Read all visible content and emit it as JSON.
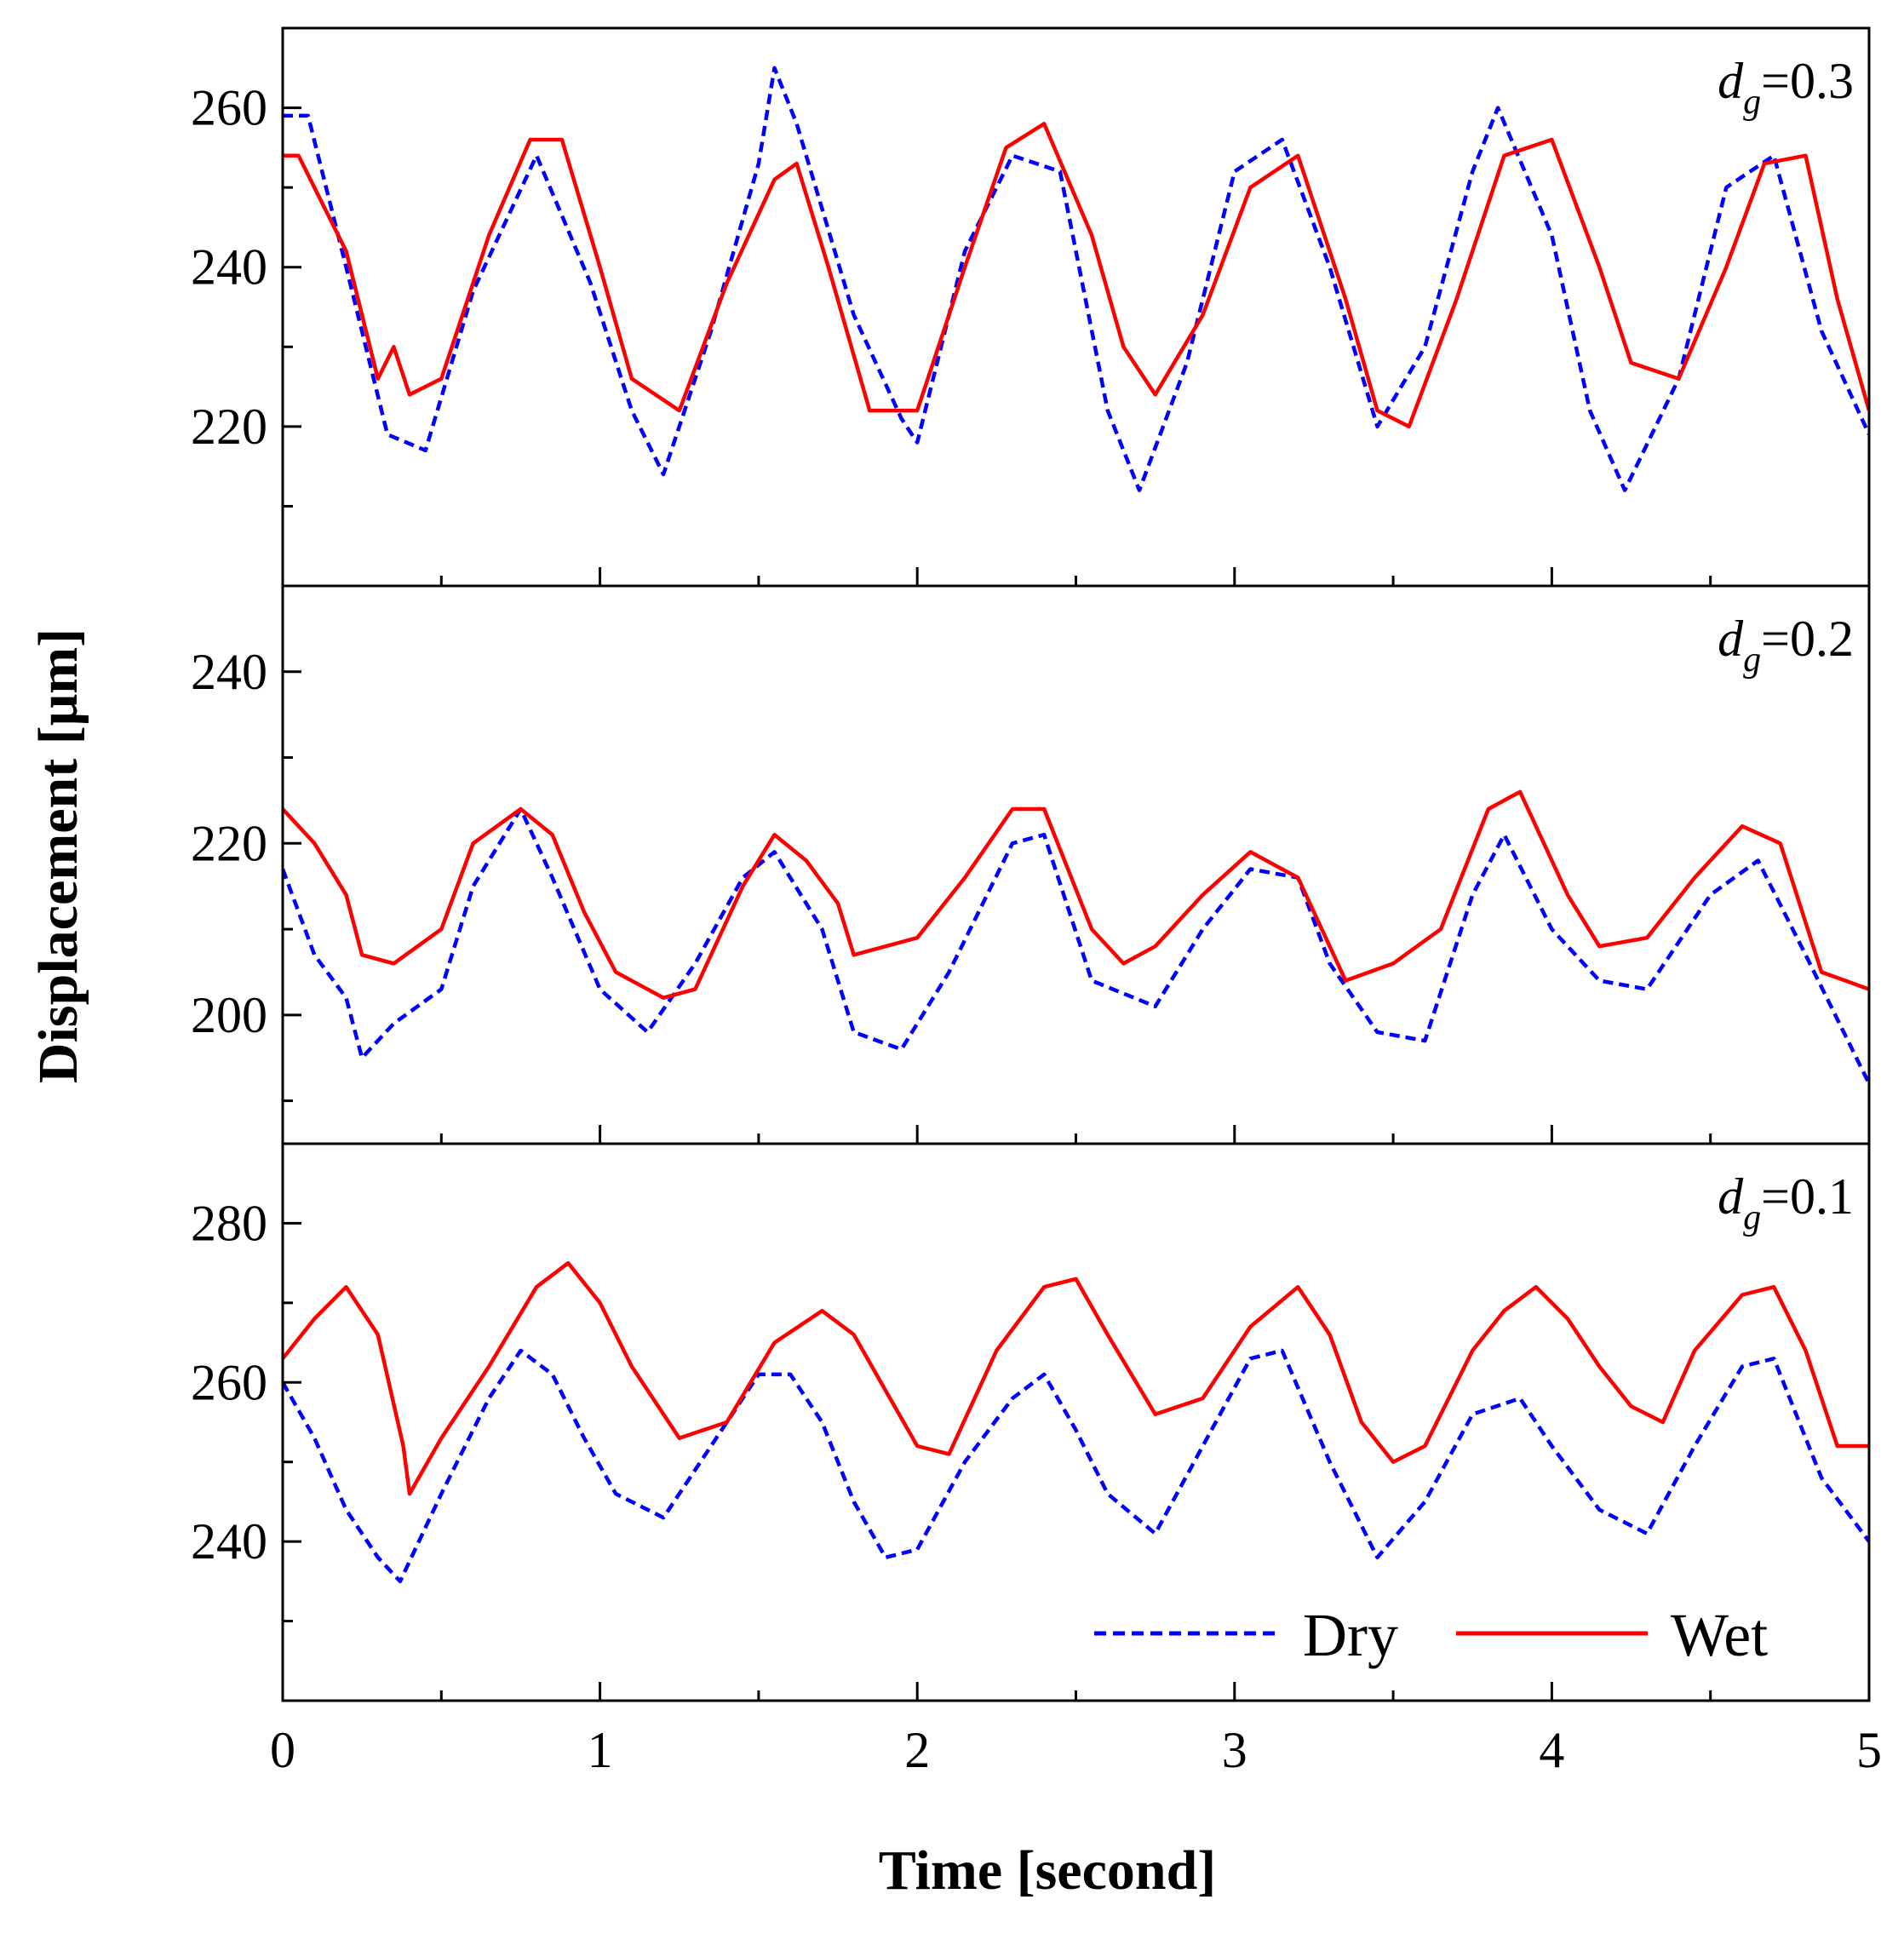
{
  "chart_data": {
    "type": "line",
    "xlabel": "Time [second]",
    "ylabel": "Displacement [μm]",
    "xlim": [
      0,
      5
    ],
    "xticks": [
      0,
      1,
      2,
      3,
      4,
      5
    ],
    "x_tick_labels": [
      "0",
      "1",
      "2",
      "3",
      "4",
      "5"
    ],
    "legend": {
      "placement": "bottom-right",
      "entries": [
        {
          "name": "Dry",
          "color": "#0000ff",
          "style": "dashed"
        },
        {
          "name": "Wet",
          "color": "#ff0000",
          "style": "solid"
        }
      ]
    },
    "panels": [
      {
        "annotation": {
          "var": "d",
          "sub": "g",
          "rest": "=0.3"
        },
        "ylim": [
          200,
          270
        ],
        "yticks": [
          220,
          240,
          260
        ],
        "y_tick_labels": [
          "220",
          "240",
          "260"
        ],
        "series": [
          {
            "name": "Dry",
            "x": [
              0,
              0.08,
              0.2,
              0.33,
              0.45,
              0.6,
              0.8,
              0.97,
              1.1,
              1.2,
              1.35,
              1.5,
              1.55,
              1.62,
              1.8,
              1.95,
              2.0,
              2.15,
              2.3,
              2.45,
              2.6,
              2.7,
              2.85,
              3.0,
              3.15,
              3.3,
              3.45,
              3.6,
              3.75,
              3.83,
              4.0,
              4.12,
              4.23,
              4.4,
              4.55,
              4.7,
              4.85,
              5.0
            ],
            "values": [
              259,
              259,
              240,
              219,
              217,
              237,
              254,
              238,
              222,
              214,
              232,
              253,
              265,
              258,
              234,
              221,
              218,
              242,
              254,
              252,
              222,
              212,
              228,
              252,
              256,
              240,
              220,
              230,
              252,
              260,
              244,
              222,
              212,
              226,
              250,
              254,
              232,
              219
            ]
          },
          {
            "name": "Wet",
            "x": [
              0,
              0.05,
              0.2,
              0.3,
              0.35,
              0.4,
              0.5,
              0.65,
              0.78,
              0.88,
              1.0,
              1.1,
              1.25,
              1.4,
              1.55,
              1.62,
              1.72,
              1.85,
              2.0,
              2.15,
              2.28,
              2.4,
              2.55,
              2.65,
              2.75,
              2.9,
              3.05,
              3.2,
              3.35,
              3.45,
              3.55,
              3.7,
              3.85,
              4.0,
              4.15,
              4.25,
              4.4,
              4.55,
              4.67,
              4.8,
              4.9,
              5.0
            ],
            "values": [
              254,
              254,
              242,
              226,
              230,
              224,
              226,
              244,
              256,
              256,
              240,
              226,
              222,
              238,
              251,
              253,
              240,
              222,
              222,
              240,
              255,
              258,
              244,
              230,
              224,
              234,
              250,
              254,
              236,
              222,
              220,
              236,
              254,
              256,
              240,
              228,
              226,
              240,
              253,
              254,
              236,
              222
            ]
          }
        ]
      },
      {
        "annotation": {
          "var": "d",
          "sub": "g",
          "rest": "=0.2"
        },
        "ylim": [
          185,
          250
        ],
        "yticks": [
          200,
          220,
          240
        ],
        "y_tick_labels": [
          "200",
          "220",
          "240"
        ],
        "series": [
          {
            "name": "Dry",
            "x": [
              0,
              0.1,
              0.2,
              0.25,
              0.35,
              0.5,
              0.6,
              0.75,
              0.85,
              1.0,
              1.15,
              1.3,
              1.45,
              1.55,
              1.7,
              1.8,
              1.95,
              2.1,
              2.3,
              2.4,
              2.55,
              2.75,
              2.9,
              3.05,
              3.2,
              3.3,
              3.45,
              3.6,
              3.75,
              3.85,
              4.0,
              4.15,
              4.3,
              4.5,
              4.65,
              4.8,
              5.0
            ],
            "values": [
              217,
              207,
              202,
              195,
              199,
              203,
              215,
              224,
              216,
              203,
              198,
              206,
              216,
              219,
              210,
              198,
              196,
              205,
              220,
              221,
              204,
              201,
              210,
              217,
              216,
              206,
              198,
              197,
              214,
              221,
              210,
              204,
              203,
              214,
              218,
              207,
              192
            ]
          },
          {
            "name": "Wet",
            "x": [
              0,
              0.1,
              0.2,
              0.25,
              0.35,
              0.5,
              0.6,
              0.75,
              0.85,
              0.95,
              1.05,
              1.2,
              1.3,
              1.45,
              1.55,
              1.65,
              1.75,
              1.8,
              2.0,
              2.15,
              2.3,
              2.4,
              2.55,
              2.65,
              2.75,
              2.9,
              3.05,
              3.2,
              3.35,
              3.5,
              3.65,
              3.8,
              3.9,
              4.05,
              4.15,
              4.3,
              4.45,
              4.6,
              4.72,
              4.85,
              5.0
            ],
            "values": [
              224,
              220,
              214,
              207,
              206,
              210,
              220,
              224,
              221,
              212,
              205,
              202,
              203,
              215,
              221,
              218,
              213,
              207,
              209,
              216,
              224,
              224,
              210,
              206,
              208,
              214,
              219,
              216,
              204,
              206,
              210,
              224,
              226,
              214,
              208,
              209,
              216,
              222,
              220,
              205,
              203
            ]
          }
        ]
      },
      {
        "annotation": {
          "var": "d",
          "sub": "g",
          "rest": "=0.1"
        },
        "ylim": [
          220,
          290
        ],
        "yticks": [
          240,
          260,
          280
        ],
        "y_tick_labels": [
          "240",
          "260",
          "280"
        ],
        "series": [
          {
            "name": "Dry",
            "x": [
              0,
              0.1,
              0.2,
              0.3,
              0.37,
              0.5,
              0.65,
              0.75,
              0.85,
              0.95,
              1.05,
              1.2,
              1.35,
              1.5,
              1.6,
              1.7,
              1.8,
              1.9,
              2.0,
              2.15,
              2.3,
              2.4,
              2.5,
              2.6,
              2.75,
              2.9,
              3.05,
              3.15,
              3.3,
              3.45,
              3.6,
              3.75,
              3.9,
              4.0,
              4.15,
              4.3,
              4.45,
              4.6,
              4.7,
              4.85,
              5.0
            ],
            "values": [
              260,
              253,
              244,
              238,
              235,
              246,
              258,
              264,
              261,
              253,
              246,
              243,
              252,
              261,
              261,
              255,
              245,
              238,
              239,
              250,
              258,
              261,
              254,
              246,
              241,
              252,
              263,
              264,
              250,
              238,
              245,
              256,
              258,
              252,
              244,
              241,
              252,
              262,
              263,
              248,
              240
            ]
          },
          {
            "name": "Wet",
            "x": [
              0,
              0.1,
              0.2,
              0.3,
              0.38,
              0.4,
              0.5,
              0.65,
              0.8,
              0.9,
              1.0,
              1.1,
              1.25,
              1.4,
              1.55,
              1.7,
              1.8,
              1.9,
              2.0,
              2.1,
              2.25,
              2.4,
              2.5,
              2.6,
              2.75,
              2.9,
              3.05,
              3.2,
              3.3,
              3.4,
              3.5,
              3.6,
              3.75,
              3.85,
              3.95,
              4.05,
              4.15,
              4.25,
              4.35,
              4.45,
              4.6,
              4.7,
              4.8,
              4.9,
              5.0
            ],
            "values": [
              263,
              268,
              272,
              266,
              252,
              246,
              253,
              262,
              272,
              275,
              270,
              262,
              253,
              255,
              265,
              269,
              266,
              259,
              252,
              251,
              264,
              272,
              273,
              266,
              256,
              258,
              267,
              272,
              266,
              255,
              250,
              252,
              264,
              269,
              272,
              268,
              262,
              257,
              255,
              264,
              271,
              272,
              264,
              252,
              252
            ]
          }
        ]
      }
    ]
  }
}
